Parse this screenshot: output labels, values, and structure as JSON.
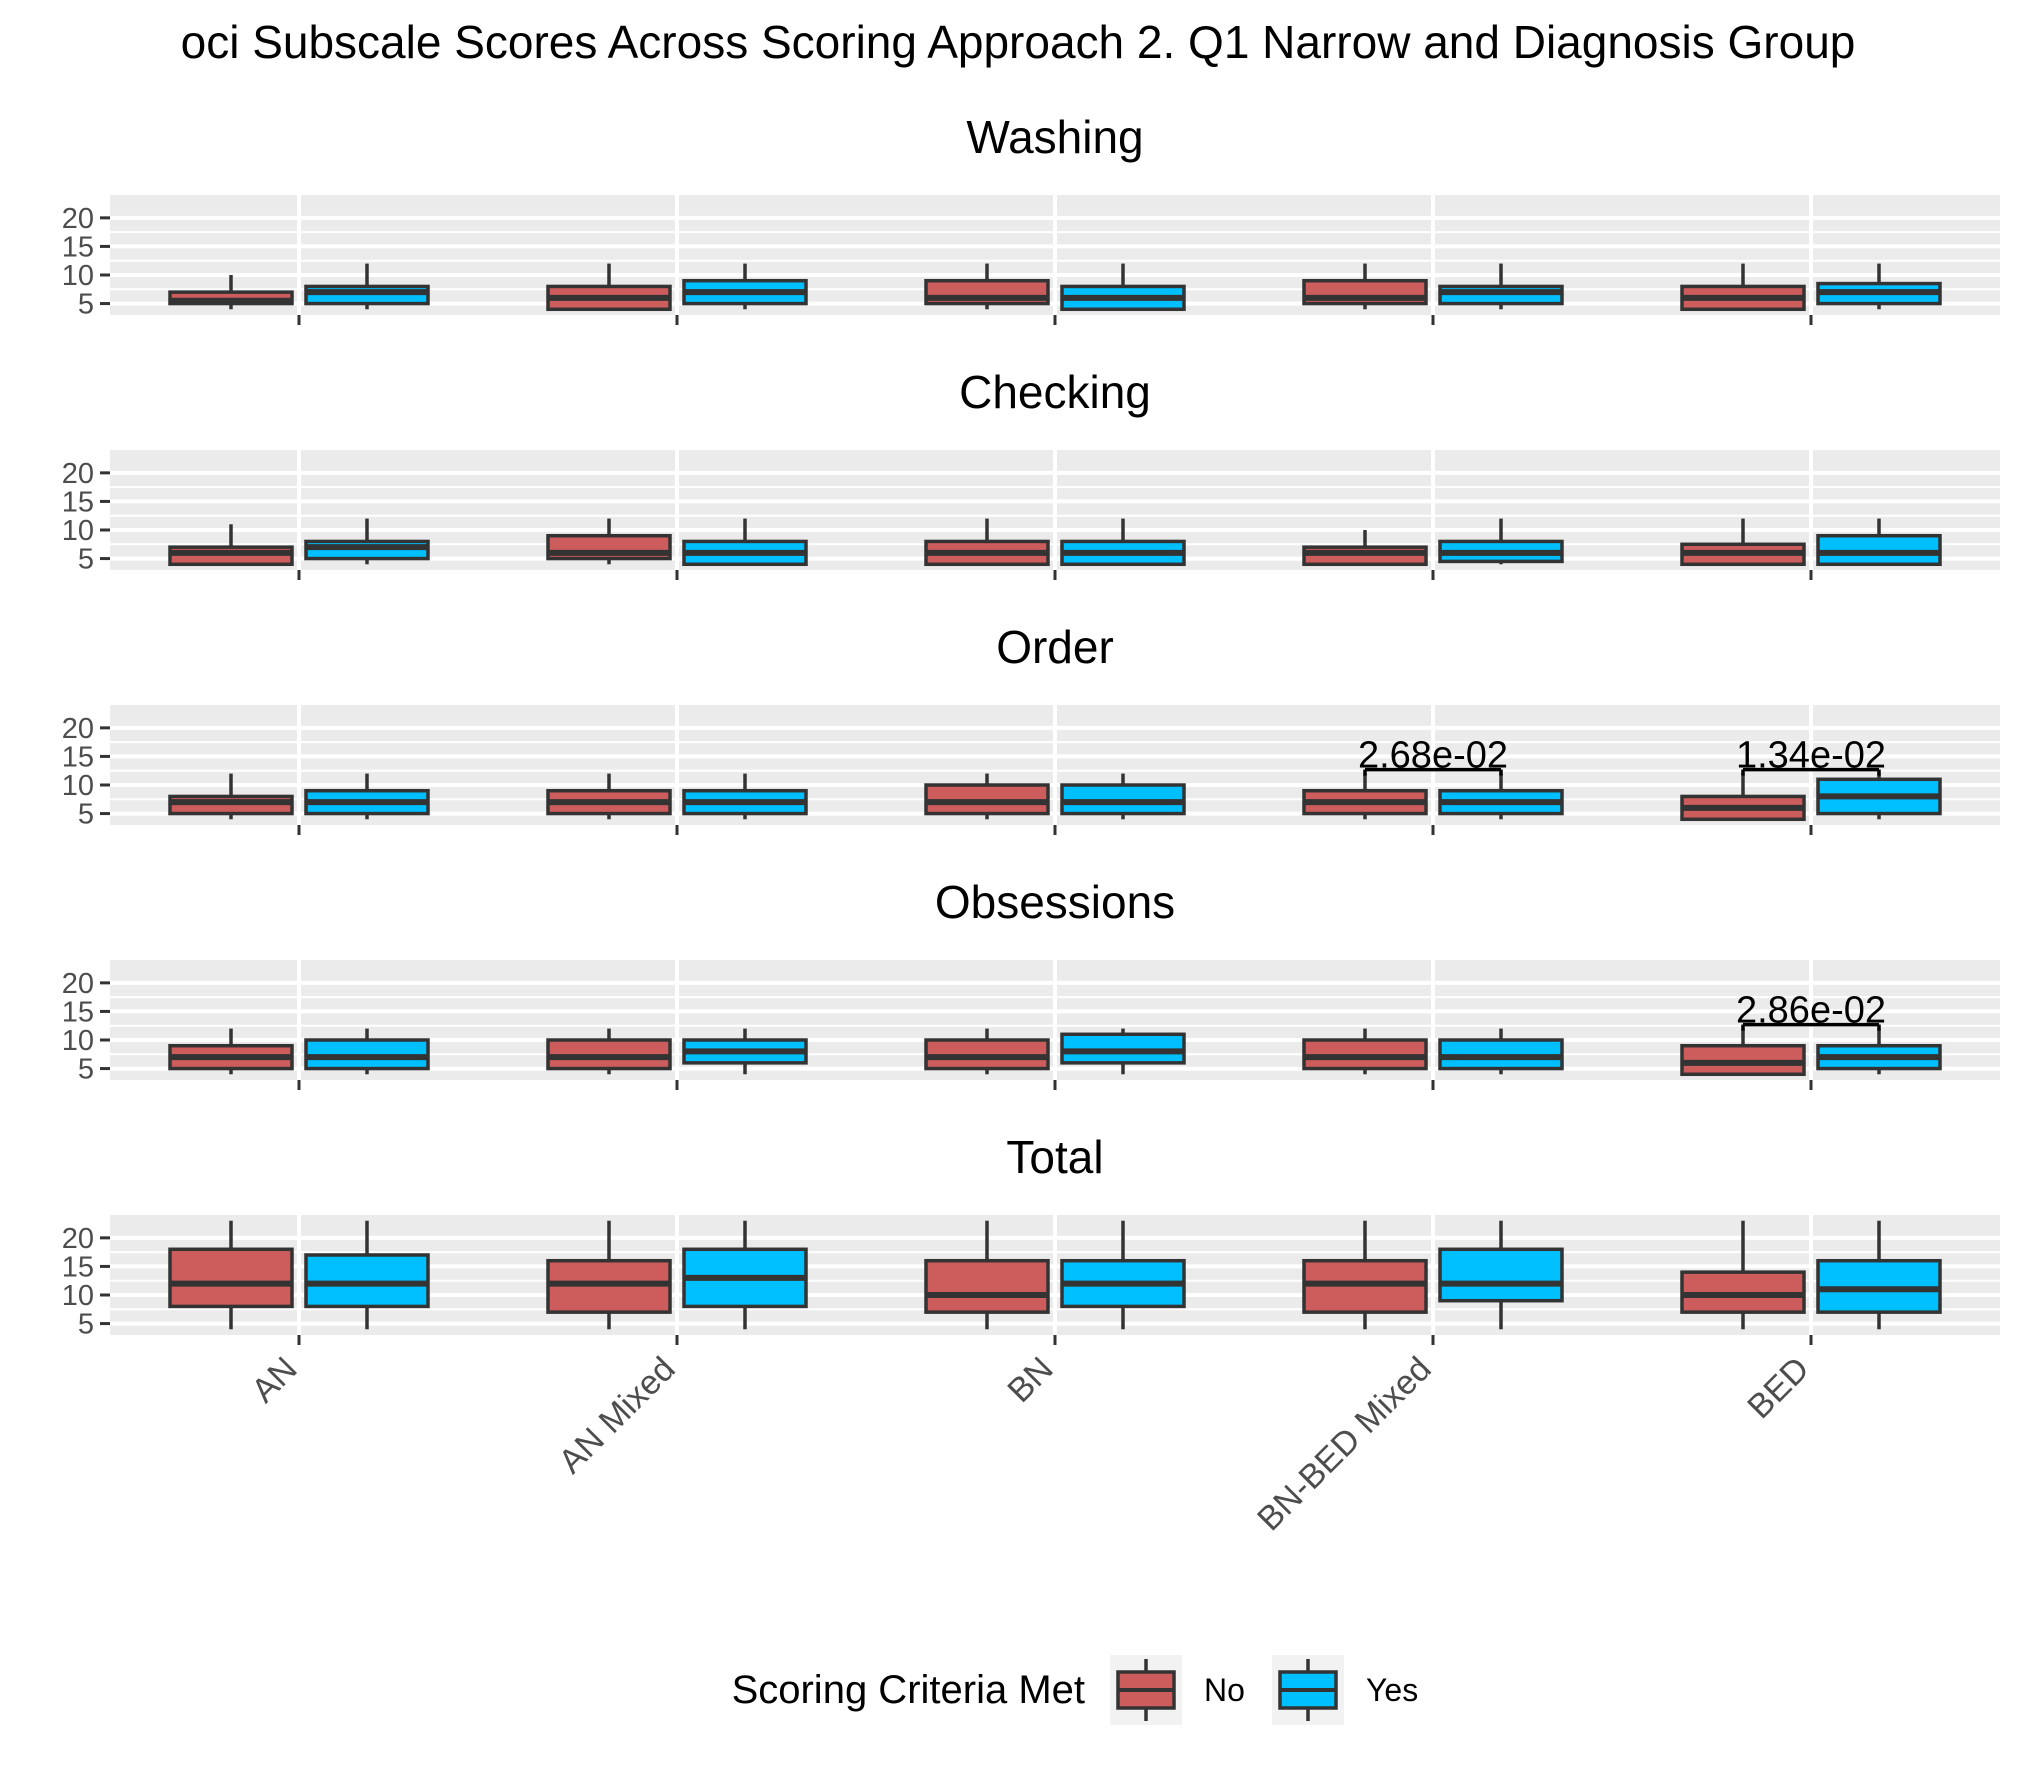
{
  "chart_data": {
    "type": "boxplot",
    "title": "oci Subscale Scores Across Scoring Approach 2. Q1 Narrow and Diagnosis Group",
    "xlabel": "",
    "ylabel": "",
    "categories": [
      "AN",
      "AN Mixed",
      "BN",
      "BN-BED Mixed",
      "BED"
    ],
    "y_ticks": [
      5,
      10,
      15,
      20
    ],
    "ylim": [
      3,
      24
    ],
    "grid": true,
    "legend": {
      "title": "Scoring Criteria Met",
      "position": "bottom",
      "entries": [
        {
          "name": "No",
          "color": "#cd5c5c"
        },
        {
          "name": "Yes",
          "color": "#00bfff"
        }
      ]
    },
    "series_colors": {
      "No": "#cd5c5c",
      "Yes": "#00bfff"
    },
    "panels": [
      {
        "name": "Washing",
        "boxes": [
          {
            "category": "AN",
            "group": "No",
            "min": 4,
            "q1": 5,
            "median": 5.5,
            "q3": 7,
            "max": 10
          },
          {
            "category": "AN",
            "group": "Yes",
            "min": 4,
            "q1": 5,
            "median": 7,
            "q3": 8,
            "max": 12
          },
          {
            "category": "AN Mixed",
            "group": "No",
            "min": 4,
            "q1": 4,
            "median": 6,
            "q3": 8,
            "max": 12
          },
          {
            "category": "AN Mixed",
            "group": "Yes",
            "min": 4,
            "q1": 5,
            "median": 7,
            "q3": 9,
            "max": 12
          },
          {
            "category": "BN",
            "group": "No",
            "min": 4,
            "q1": 5,
            "median": 6,
            "q3": 9,
            "max": 12
          },
          {
            "category": "BN",
            "group": "Yes",
            "min": 4,
            "q1": 4,
            "median": 6,
            "q3": 8,
            "max": 12
          },
          {
            "category": "BN-BED Mixed",
            "group": "No",
            "min": 4,
            "q1": 5,
            "median": 6,
            "q3": 9,
            "max": 12
          },
          {
            "category": "BN-BED Mixed",
            "group": "Yes",
            "min": 4,
            "q1": 5,
            "median": 7,
            "q3": 8,
            "max": 12
          },
          {
            "category": "BED",
            "group": "No",
            "min": 4,
            "q1": 4,
            "median": 6,
            "q3": 8,
            "max": 12
          },
          {
            "category": "BED",
            "group": "Yes",
            "min": 4,
            "q1": 5,
            "median": 7,
            "q3": 8.5,
            "max": 12
          }
        ],
        "annotations": []
      },
      {
        "name": "Checking",
        "boxes": [
          {
            "category": "AN",
            "group": "No",
            "min": 4,
            "q1": 4,
            "median": 6,
            "q3": 7,
            "max": 11
          },
          {
            "category": "AN",
            "group": "Yes",
            "min": 4,
            "q1": 5,
            "median": 7,
            "q3": 8,
            "max": 12
          },
          {
            "category": "AN Mixed",
            "group": "No",
            "min": 4,
            "q1": 5,
            "median": 6,
            "q3": 9,
            "max": 12
          },
          {
            "category": "AN Mixed",
            "group": "Yes",
            "min": 4,
            "q1": 4,
            "median": 6,
            "q3": 8,
            "max": 12
          },
          {
            "category": "BN",
            "group": "No",
            "min": 4,
            "q1": 4,
            "median": 6,
            "q3": 8,
            "max": 12
          },
          {
            "category": "BN",
            "group": "Yes",
            "min": 4,
            "q1": 4,
            "median": 6,
            "q3": 8,
            "max": 12
          },
          {
            "category": "BN-BED Mixed",
            "group": "No",
            "min": 4,
            "q1": 4,
            "median": 6,
            "q3": 7,
            "max": 10
          },
          {
            "category": "BN-BED Mixed",
            "group": "Yes",
            "min": 4,
            "q1": 4.5,
            "median": 6,
            "q3": 8,
            "max": 12
          },
          {
            "category": "BED",
            "group": "No",
            "min": 4,
            "q1": 4,
            "median": 6,
            "q3": 7.5,
            "max": 12
          },
          {
            "category": "BED",
            "group": "Yes",
            "min": 4,
            "q1": 4,
            "median": 6,
            "q3": 9,
            "max": 12
          }
        ],
        "annotations": []
      },
      {
        "name": "Order",
        "boxes": [
          {
            "category": "AN",
            "group": "No",
            "min": 4,
            "q1": 5,
            "median": 7,
            "q3": 8,
            "max": 12
          },
          {
            "category": "AN",
            "group": "Yes",
            "min": 4,
            "q1": 5,
            "median": 7,
            "q3": 9,
            "max": 12
          },
          {
            "category": "AN Mixed",
            "group": "No",
            "min": 4,
            "q1": 5,
            "median": 7,
            "q3": 9,
            "max": 12
          },
          {
            "category": "AN Mixed",
            "group": "Yes",
            "min": 4,
            "q1": 5,
            "median": 7,
            "q3": 9,
            "max": 12
          },
          {
            "category": "BN",
            "group": "No",
            "min": 4,
            "q1": 5,
            "median": 7,
            "q3": 10,
            "max": 12
          },
          {
            "category": "BN",
            "group": "Yes",
            "min": 4,
            "q1": 5,
            "median": 7,
            "q3": 10,
            "max": 12
          },
          {
            "category": "BN-BED Mixed",
            "group": "No",
            "min": 4,
            "q1": 5,
            "median": 7,
            "q3": 9,
            "max": 12
          },
          {
            "category": "BN-BED Mixed",
            "group": "Yes",
            "min": 4,
            "q1": 5,
            "median": 7,
            "q3": 9,
            "max": 12
          },
          {
            "category": "BED",
            "group": "No",
            "min": 4,
            "q1": 4,
            "median": 6,
            "q3": 8,
            "max": 12
          },
          {
            "category": "BED",
            "group": "Yes",
            "min": 4,
            "q1": 5,
            "median": 8,
            "q3": 11,
            "max": 12
          }
        ],
        "annotations": [
          {
            "category": "BN-BED Mixed",
            "label": "2.68e-02",
            "y": 12.7
          },
          {
            "category": "BED",
            "label": "1.34e-02",
            "y": 12.7
          }
        ]
      },
      {
        "name": "Obsessions",
        "boxes": [
          {
            "category": "AN",
            "group": "No",
            "min": 4,
            "q1": 5,
            "median": 7,
            "q3": 9,
            "max": 12
          },
          {
            "category": "AN",
            "group": "Yes",
            "min": 4,
            "q1": 5,
            "median": 7,
            "q3": 10,
            "max": 12
          },
          {
            "category": "AN Mixed",
            "group": "No",
            "min": 4,
            "q1": 5,
            "median": 7,
            "q3": 10,
            "max": 12
          },
          {
            "category": "AN Mixed",
            "group": "Yes",
            "min": 4,
            "q1": 6,
            "median": 8,
            "q3": 10,
            "max": 12
          },
          {
            "category": "BN",
            "group": "No",
            "min": 4,
            "q1": 5,
            "median": 7,
            "q3": 10,
            "max": 12
          },
          {
            "category": "BN",
            "group": "Yes",
            "min": 4,
            "q1": 6,
            "median": 8,
            "q3": 11,
            "max": 12
          },
          {
            "category": "BN-BED Mixed",
            "group": "No",
            "min": 4,
            "q1": 5,
            "median": 7,
            "q3": 10,
            "max": 12
          },
          {
            "category": "BN-BED Mixed",
            "group": "Yes",
            "min": 4,
            "q1": 5,
            "median": 7,
            "q3": 10,
            "max": 12
          },
          {
            "category": "BED",
            "group": "No",
            "min": 4,
            "q1": 4,
            "median": 6,
            "q3": 9,
            "max": 12
          },
          {
            "category": "BED",
            "group": "Yes",
            "min": 4,
            "q1": 5,
            "median": 7,
            "q3": 9,
            "max": 12
          }
        ],
        "annotations": [
          {
            "category": "BED",
            "label": "2.86e-02",
            "y": 12.7
          }
        ]
      },
      {
        "name": "Total",
        "boxes": [
          {
            "category": "AN",
            "group": "No",
            "min": 4,
            "q1": 8,
            "median": 12,
            "q3": 18,
            "max": 23
          },
          {
            "category": "AN",
            "group": "Yes",
            "min": 4,
            "q1": 8,
            "median": 12,
            "q3": 17,
            "max": 23
          },
          {
            "category": "AN Mixed",
            "group": "No",
            "min": 4,
            "q1": 7,
            "median": 12,
            "q3": 16,
            "max": 23
          },
          {
            "category": "AN Mixed",
            "group": "Yes",
            "min": 4,
            "q1": 8,
            "median": 13,
            "q3": 18,
            "max": 23
          },
          {
            "category": "BN",
            "group": "No",
            "min": 4,
            "q1": 7,
            "median": 10,
            "q3": 16,
            "max": 23
          },
          {
            "category": "BN",
            "group": "Yes",
            "min": 4,
            "q1": 8,
            "median": 12,
            "q3": 16,
            "max": 23
          },
          {
            "category": "BN-BED Mixed",
            "group": "No",
            "min": 4,
            "q1": 7,
            "median": 12,
            "q3": 16,
            "max": 23
          },
          {
            "category": "BN-BED Mixed",
            "group": "Yes",
            "min": 4,
            "q1": 9,
            "median": 12,
            "q3": 18,
            "max": 23
          },
          {
            "category": "BED",
            "group": "No",
            "min": 4,
            "q1": 7,
            "median": 10,
            "q3": 14,
            "max": 23
          },
          {
            "category": "BED",
            "group": "Yes",
            "min": 4,
            "q1": 7,
            "median": 11,
            "q3": 16,
            "max": 23
          }
        ],
        "annotations": []
      }
    ]
  }
}
